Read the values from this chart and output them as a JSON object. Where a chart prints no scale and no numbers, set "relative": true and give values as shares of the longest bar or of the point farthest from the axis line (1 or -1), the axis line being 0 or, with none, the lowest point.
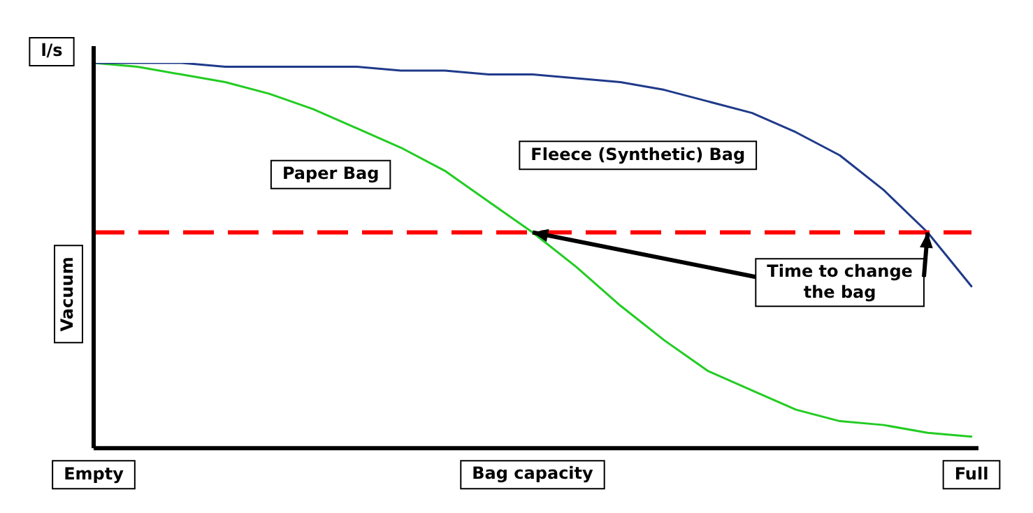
{
  "chart_data": {
    "type": "line",
    "relative": true,
    "xlabel": "Bag capacity",
    "ylabel": "Vacuum",
    "categories": [
      "Empty",
      null,
      null,
      null,
      null,
      null,
      null,
      null,
      null,
      null,
      null,
      null,
      null,
      null,
      null,
      null,
      null,
      null,
      null,
      null,
      "Full"
    ],
    "tick_labels": "x",
    "grid": false,
    "legend": false,
    "marker": "none",
    "line_style": "solid",
    "series": [
      {
        "name": "Fleece (Synthetic) Bag",
        "color": "#1f3a8a",
        "values": [
          1,
          1,
          1,
          0.99,
          0.99,
          0.99,
          0.99,
          0.98,
          0.98,
          0.97,
          0.97,
          0.96,
          0.95,
          0.93,
          0.9,
          0.87,
          0.82,
          0.76,
          0.67,
          0.56,
          0.42
        ]
      },
      {
        "name": "Paper Bag",
        "color": "#22cc22",
        "values": [
          1,
          0.99,
          0.97,
          0.95,
          0.92,
          0.88,
          0.83,
          0.78,
          0.72,
          0.64,
          0.56,
          0.47,
          0.37,
          0.28,
          0.2,
          0.15,
          0.1,
          0.07,
          0.06,
          0.04,
          0.03
        ]
      }
    ],
    "ref_lines": [
      {
        "axis": "y",
        "value": 0.56,
        "color": "#ff0000",
        "line_style": "dashed"
      }
    ],
    "annotations": [
      "l/s",
      "Time to change the bag"
    ]
  }
}
